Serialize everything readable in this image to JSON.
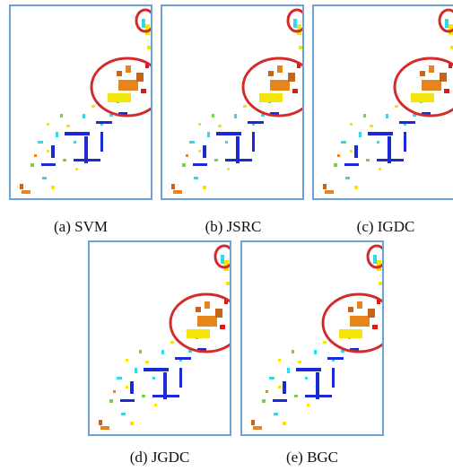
{
  "figure": {
    "panels": [
      {
        "id": "svm",
        "caption": "(a) SVM"
      },
      {
        "id": "jsrc",
        "caption": "(b) JSRC"
      },
      {
        "id": "igdc",
        "caption": "(c) IGDC"
      },
      {
        "id": "jgdc",
        "caption": "(d) JGDC"
      },
      {
        "id": "bgc",
        "caption": "(e) BGC"
      }
    ],
    "colors": {
      "frame": "#6fa0d2",
      "highlight_ellipse": "#d42a2a",
      "class_orange": "#e8841c",
      "class_dark_orange": "#c8641a",
      "class_yellow": "#f5e40a",
      "class_blue": "#1c2ad4",
      "class_cyan": "#30d8e8",
      "class_red": "#e01818",
      "class_green": "#7ad04a",
      "class_brown": "#b8824a"
    }
  }
}
